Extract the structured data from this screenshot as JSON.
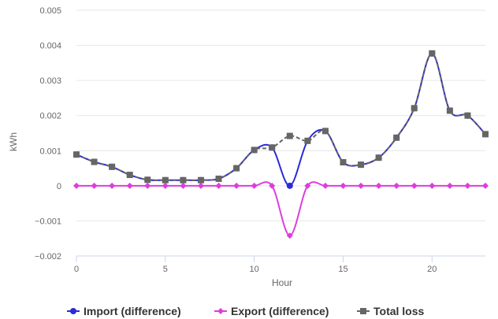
{
  "chart_data": {
    "type": "line",
    "xlabel": "Hour",
    "ylabel": "kWh",
    "xlim": [
      0,
      23
    ],
    "ylim": [
      -0.002,
      0.005
    ],
    "x_ticks": [
      0,
      5,
      10,
      15,
      20
    ],
    "x_tick_labels": [
      "0",
      "5",
      "10",
      "15",
      "20"
    ],
    "y_ticks": [
      -0.002,
      -0.001,
      0,
      0.001,
      0.002,
      0.003,
      0.004,
      0.005
    ],
    "y_tick_labels": [
      "−0.002",
      "−0.001",
      "0",
      "0.001",
      "0.002",
      "0.003",
      "0.004",
      "0.005"
    ],
    "grid": "horizontal",
    "legend_position": "bottom",
    "x": [
      0,
      1,
      2,
      3,
      4,
      5,
      6,
      7,
      8,
      9,
      10,
      11,
      12,
      13,
      14,
      15,
      16,
      17,
      18,
      19,
      20,
      21,
      22,
      23
    ],
    "series": [
      {
        "name": "Import (difference)",
        "color": "#2b2bd6",
        "marker": "circle",
        "values": [
          0.00089,
          0.00068,
          0.00054,
          0.00031,
          0.00017,
          0.00016,
          0.00016,
          0.00016,
          0.0002,
          0.0005,
          0.00102,
          0.00109,
          0.0,
          0.00128,
          0.00156,
          0.00067,
          0.0006,
          0.0008,
          0.00137,
          0.00221,
          0.00377,
          0.00214,
          0.002,
          0.00147
        ]
      },
      {
        "name": "Export (difference)",
        "color": "#dd3ddd",
        "marker": "diamond",
        "values": [
          0,
          0,
          0,
          0,
          0,
          0,
          0,
          0,
          0,
          0,
          0,
          0,
          -0.00142,
          0,
          0,
          0,
          0,
          0,
          0,
          0,
          0,
          0,
          0,
          0
        ]
      },
      {
        "name": "Total loss",
        "color": "#666666",
        "marker": "square",
        "dashed": true,
        "values": [
          0.00089,
          0.00068,
          0.00054,
          0.00031,
          0.00017,
          0.00016,
          0.00016,
          0.00016,
          0.0002,
          0.0005,
          0.00102,
          0.00109,
          0.00142,
          0.00128,
          0.00156,
          0.00067,
          0.0006,
          0.0008,
          0.00137,
          0.00221,
          0.00377,
          0.00214,
          0.002,
          0.00147
        ]
      }
    ]
  }
}
